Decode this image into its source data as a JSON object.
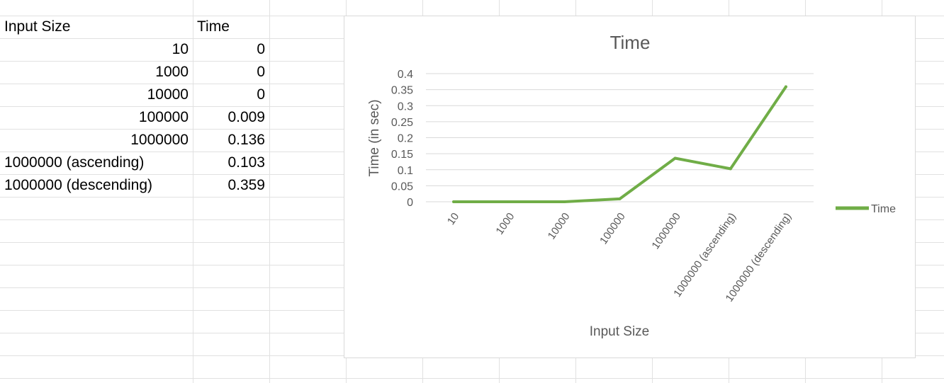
{
  "table": {
    "headers": [
      "Input Size",
      "Time"
    ],
    "rows": [
      {
        "size": "10",
        "time": "0"
      },
      {
        "size": "1000",
        "time": "0"
      },
      {
        "size": "10000",
        "time": "0"
      },
      {
        "size": "100000",
        "time": "0.009"
      },
      {
        "size": "1000000",
        "time": "0.136"
      },
      {
        "size": "1000000 (ascending)",
        "time": "0.103"
      },
      {
        "size": "1000000 (descending)",
        "time": "0.359"
      }
    ]
  },
  "colors": {
    "series": "#70ad47",
    "gridline": "#d9d9d9",
    "sheet_grid": "#e1e1e1",
    "text": "#595959"
  },
  "chart_data": {
    "type": "line",
    "title": "Time",
    "xlabel": "Input Size",
    "ylabel": "Time (in sec)",
    "categories": [
      "10",
      "1000",
      "10000",
      "100000",
      "1000000",
      "1000000 (ascending)",
      "1000000 (descending)"
    ],
    "series": [
      {
        "name": "Time",
        "values": [
          0,
          0,
          0,
          0.009,
          0.136,
          0.103,
          0.359
        ]
      }
    ],
    "yticks": [
      "0",
      "0.05",
      "0.1",
      "0.15",
      "0.2",
      "0.25",
      "0.3",
      "0.35",
      "0.4"
    ],
    "ylim": [
      0,
      0.4
    ],
    "grid": true,
    "legend": "right"
  }
}
